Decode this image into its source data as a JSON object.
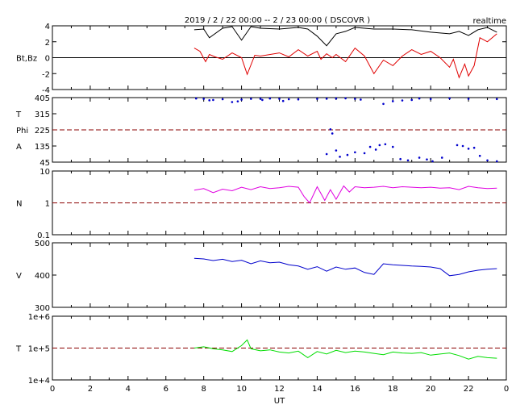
{
  "header": {
    "title": "2019 / 2 / 22   00:00 -- 2 / 23   00:00 ( DSCOVR )",
    "status": "realtime"
  },
  "chart_data": [
    {
      "id": "magnetic",
      "type": "line",
      "ylabel_lines": [
        "Bt,Bz"
      ],
      "ylim": [
        -4,
        4
      ],
      "yticks": [
        "4",
        "2",
        "0",
        "-2",
        "-4"
      ],
      "yscale": "linear",
      "reference": {
        "y": 0,
        "style": "solid",
        "color": "#000000"
      },
      "series": [
        {
          "key": "bt",
          "color": "#000000",
          "x": [
            7.5,
            8.0,
            8.3,
            9.0,
            9.5,
            10.0,
            10.5,
            11.0,
            12.0,
            13.0,
            13.5,
            14.0,
            14.5,
            15.0,
            15.5,
            16.0,
            17.0,
            18.0,
            19.0,
            20.0,
            21.0,
            21.5,
            22.0,
            22.5,
            23.0,
            23.5
          ],
          "y": [
            3.5,
            3.6,
            2.5,
            3.7,
            3.9,
            2.2,
            3.9,
            3.7,
            3.6,
            3.8,
            3.6,
            2.7,
            1.5,
            3.0,
            3.3,
            3.8,
            3.6,
            3.6,
            3.5,
            3.2,
            3.0,
            3.3,
            2.8,
            3.5,
            3.8,
            3.2
          ]
        },
        {
          "key": "bz",
          "color": "#e00000",
          "x": [
            7.5,
            7.8,
            8.1,
            8.3,
            8.6,
            9.0,
            9.5,
            10.0,
            10.3,
            10.7,
            11.0,
            12.0,
            12.5,
            13.0,
            13.5,
            14.0,
            14.2,
            14.5,
            14.8,
            15.0,
            15.5,
            16.0,
            16.5,
            17.0,
            17.5,
            18.0,
            18.5,
            19.0,
            19.5,
            20.0,
            20.5,
            21.0,
            21.2,
            21.5,
            21.8,
            22.0,
            22.3,
            22.6,
            23.0,
            23.5
          ],
          "y": [
            1.2,
            0.8,
            -0.5,
            0.4,
            0.1,
            -0.2,
            0.6,
            0.0,
            -2.1,
            0.3,
            0.2,
            0.6,
            0.1,
            1.0,
            0.2,
            0.8,
            -0.2,
            0.5,
            0.0,
            0.4,
            -0.5,
            1.2,
            0.2,
            -2.0,
            -0.3,
            -1.0,
            0.2,
            1.0,
            0.4,
            0.8,
            0.0,
            -1.2,
            -0.2,
            -2.5,
            -0.8,
            -2.3,
            -1.0,
            2.5,
            2.0,
            3.0
          ]
        }
      ]
    },
    {
      "id": "angles",
      "type": "scatter",
      "ylabel_lines": [
        "T",
        "Phi",
        "A"
      ],
      "ylim": [
        45,
        405
      ],
      "yticks": [
        "405",
        "315",
        "225",
        "135",
        "45"
      ],
      "yscale": "linear",
      "reference": {
        "y": 225,
        "style": "dashed",
        "color": "#8b0000"
      },
      "series": [
        {
          "key": "phi",
          "color": "#0000cc",
          "x": [
            7.6,
            8.0,
            8.5,
            9.0,
            9.5,
            10.0,
            10.5,
            11.0,
            11.5,
            12.0,
            12.5,
            13.0,
            14.0,
            14.5,
            15.0,
            15.5,
            16.0,
            16.3,
            17.5,
            18.0,
            18.5,
            19.0,
            19.4,
            20.0,
            21.0,
            22.0,
            23.5,
            8.3,
            9.8,
            11.1,
            12.2,
            14.7,
            14.8,
            14.5,
            15.0,
            15.2,
            15.6,
            16.0,
            16.5,
            16.8,
            17.1,
            17.3,
            17.6,
            18.0,
            18.4,
            18.8,
            19.4,
            19.8,
            20.1,
            20.6,
            21.4,
            21.7,
            22.0,
            22.3,
            22.6,
            23.0,
            23.5
          ],
          "y": [
            400,
            398,
            392,
            396,
            380,
            394,
            398,
            399,
            400,
            398,
            396,
            395,
            398,
            399,
            400,
            401,
            398,
            394,
            370,
            385,
            389,
            392,
            400,
            397,
            401,
            398,
            397,
            390,
            384,
            392,
            386,
            228,
            205,
            90,
            110,
            75,
            85,
            100,
            95,
            130,
            115,
            140,
            145,
            130,
            62,
            55,
            70,
            60,
            50,
            70,
            140,
            135,
            120,
            125,
            80,
            55,
            50
          ]
        }
      ]
    },
    {
      "id": "density",
      "type": "line",
      "ylabel_lines": [
        "N"
      ],
      "ylim": [
        0.1,
        10
      ],
      "yticks": [
        "10",
        "1",
        "0.1"
      ],
      "yscale": "log",
      "reference": {
        "y": 1,
        "style": "dashed",
        "color": "#8b0000"
      },
      "series": [
        {
          "key": "n",
          "color": "#e000e0",
          "x": [
            7.5,
            8.0,
            8.5,
            9.0,
            9.5,
            10.0,
            10.5,
            11.0,
            11.5,
            12.0,
            12.5,
            13.0,
            13.3,
            13.6,
            14.0,
            14.4,
            14.7,
            15.0,
            15.4,
            15.7,
            16.0,
            16.5,
            17.0,
            17.5,
            18.0,
            18.5,
            19.0,
            19.5,
            20.0,
            20.5,
            21.0,
            21.5,
            22.0,
            22.5,
            23.0,
            23.5
          ],
          "y": [
            2.5,
            2.8,
            2.1,
            2.7,
            2.4,
            3.1,
            2.6,
            3.2,
            2.8,
            3.0,
            3.3,
            3.1,
            1.6,
            1.0,
            3.2,
            1.2,
            2.6,
            1.3,
            3.4,
            2.2,
            3.2,
            3.0,
            3.1,
            3.3,
            3.0,
            3.2,
            3.1,
            3.0,
            3.1,
            2.9,
            3.0,
            2.6,
            3.3,
            3.0,
            2.8,
            2.9
          ]
        }
      ]
    },
    {
      "id": "speed",
      "type": "line",
      "ylabel_lines": [
        "V"
      ],
      "ylim": [
        300,
        500
      ],
      "yticks": [
        "500",
        "400",
        "300"
      ],
      "yscale": "linear",
      "reference": null,
      "series": [
        {
          "key": "v",
          "color": "#0000cc",
          "x": [
            7.5,
            8.0,
            8.5,
            9.0,
            9.5,
            10.0,
            10.5,
            11.0,
            11.5,
            12.0,
            12.5,
            13.0,
            13.5,
            14.0,
            14.5,
            15.0,
            15.5,
            16.0,
            16.5,
            17.0,
            17.5,
            18.0,
            18.5,
            19.0,
            19.5,
            20.0,
            20.5,
            21.0,
            21.5,
            22.0,
            22.5,
            23.0,
            23.5
          ],
          "y": [
            452,
            450,
            445,
            449,
            442,
            446,
            435,
            444,
            438,
            440,
            432,
            428,
            418,
            426,
            412,
            425,
            418,
            422,
            408,
            402,
            435,
            432,
            430,
            428,
            427,
            425,
            420,
            398,
            402,
            410,
            415,
            418,
            420
          ]
        }
      ]
    },
    {
      "id": "temperature",
      "type": "line",
      "ylabel_lines": [
        "T"
      ],
      "ylim": [
        10000,
        1000000
      ],
      "yticks": [
        "1e+6",
        "1e+5",
        "1e+4"
      ],
      "yscale": "log",
      "reference": {
        "y": 100000,
        "style": "dashed",
        "color": "#8b0000"
      },
      "series": [
        {
          "key": "t",
          "color": "#00dd00",
          "x": [
            7.5,
            8.0,
            8.5,
            9.0,
            9.5,
            10.0,
            10.3,
            10.5,
            11.0,
            11.5,
            12.0,
            12.5,
            13.0,
            13.5,
            14.0,
            14.5,
            15.0,
            15.5,
            16.0,
            16.5,
            17.0,
            17.5,
            18.0,
            18.5,
            19.0,
            19.5,
            20.0,
            20.5,
            21.0,
            21.5,
            22.0,
            22.5,
            23.0,
            23.5
          ],
          "y": [
            100000,
            110000,
            95000,
            88000,
            78000,
            120000,
            180000,
            95000,
            82000,
            88000,
            75000,
            70000,
            80000,
            50000,
            78000,
            65000,
            85000,
            72000,
            80000,
            75000,
            68000,
            62000,
            75000,
            70000,
            68000,
            72000,
            60000,
            65000,
            70000,
            58000,
            45000,
            55000,
            50000,
            48000
          ]
        }
      ]
    }
  ],
  "x_axis": {
    "label": "UT",
    "range": [
      0,
      24
    ],
    "ticks": [
      "0",
      "2",
      "4",
      "6",
      "8",
      "10",
      "12",
      "14",
      "16",
      "18",
      "20",
      "22",
      "0"
    ]
  }
}
